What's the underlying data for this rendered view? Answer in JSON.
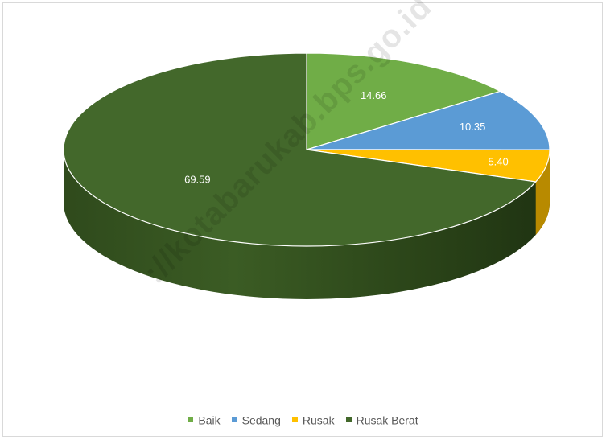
{
  "chart_data": {
    "type": "pie",
    "title": "",
    "categories": [
      "Baik",
      "Sedang",
      "Rusak",
      "Rusak Berat"
    ],
    "values": [
      14.66,
      10.35,
      5.4,
      69.59
    ],
    "value_labels": [
      "14.66",
      "10.35",
      "5.40",
      "69.59"
    ],
    "colors": [
      "#70ad47",
      "#5b9bd5",
      "#ffc000",
      "#43682b"
    ],
    "side_colors": [
      "#4e7a30",
      "#3f70a0",
      "#b88a00",
      "#263d17"
    ],
    "style": "3d",
    "legend_position": "bottom"
  },
  "watermark": "://kotabarukab.bps.go.id"
}
